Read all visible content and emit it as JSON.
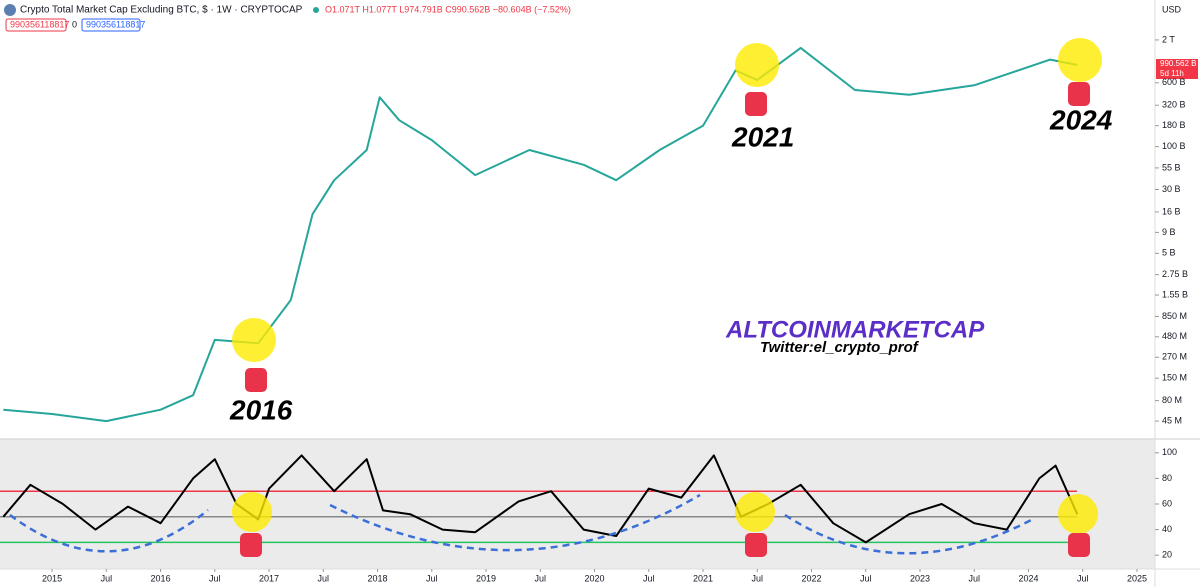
{
  "header": {
    "title": "Crypto Total Market Cap Excluding BTC, $ · 1W · CRYPTOCAP",
    "ohlc": "O1.071T H1.077T L974.791B C990.562B −80.604B (−7.52%)",
    "box_red": "990356118817",
    "zero": "0",
    "box_blue": "990356118817",
    "currency": "USD",
    "last_price": "990.562 B",
    "countdown": "5d 11h"
  },
  "annotations": {
    "y2016": "2016",
    "y2021": "2021",
    "y2024": "2024",
    "brand": "ALTCOINMARKETCAP",
    "twitter": "Twitter:el_crypto_prof"
  },
  "chart_data": [
    {
      "type": "line",
      "log_scale": true,
      "xlim": [
        2014.52,
        2025.12
      ],
      "ylim": [
        28000000,
        3500000000000
      ],
      "x": [
        2014.55,
        2015.0,
        2015.5,
        2016.0,
        2016.3,
        2016.5,
        2016.9,
        2017.2,
        2017.4,
        2017.6,
        2017.9,
        2018.02,
        2018.2,
        2018.5,
        2018.9,
        2019.4,
        2019.9,
        2020.2,
        2020.6,
        2021.0,
        2021.3,
        2021.5,
        2021.9,
        2022.4,
        2022.9,
        2023.5,
        2024.2,
        2024.45
      ],
      "series": [
        {
          "color": "#26a69a",
          "values": [
            62000000,
            55000000,
            45000000,
            62000000,
            93000000,
            440000000,
            400000000,
            1350000000,
            15000000000,
            39000000000,
            91000000000,
            400000000000,
            210000000000,
            120000000000,
            45000000000,
            91000000000,
            60000000000,
            39000000000,
            91000000000,
            180000000000,
            850000000000,
            650000000000,
            1600000000000,
            490000000000,
            430000000000,
            560000000000,
            1150000000000,
            990562000000
          ]
        }
      ],
      "yticks": [
        {
          "value": 2000000000000,
          "label": "2 T"
        },
        {
          "value": 600000000000,
          "label": "600 B"
        },
        {
          "value": 320000000000,
          "label": "320 B"
        },
        {
          "value": 180000000000,
          "label": "180 B"
        },
        {
          "value": 100000000000,
          "label": "100 B"
        },
        {
          "value": 55000000000,
          "label": "55 B"
        },
        {
          "value": 30000000000,
          "label": "30 B"
        },
        {
          "value": 16000000000,
          "label": "16 B"
        },
        {
          "value": 9000000000,
          "label": "9 B"
        },
        {
          "value": 5000000000,
          "label": "5 B"
        },
        {
          "value": 2750000000,
          "label": "2.75 B"
        },
        {
          "value": 1550000000,
          "label": "1.55 B"
        },
        {
          "value": 850000000,
          "label": "850 M"
        },
        {
          "value": 480000000,
          "label": "480 M"
        },
        {
          "value": 270000000,
          "label": "270 M"
        },
        {
          "value": 150000000,
          "label": "150 M"
        },
        {
          "value": 80000000,
          "label": "80 M"
        },
        {
          "value": 45000000,
          "label": "45 M"
        }
      ]
    },
    {
      "type": "line",
      "xlim": [
        2014.52,
        2025.12
      ],
      "ylim": [
        10,
        110
      ],
      "x": [
        2014.55,
        2014.8,
        2015.1,
        2015.4,
        2015.7,
        2016.0,
        2016.3,
        2016.5,
        2016.7,
        2016.9,
        2017.0,
        2017.3,
        2017.6,
        2017.9,
        2018.05,
        2018.3,
        2018.6,
        2018.9,
        2019.3,
        2019.6,
        2019.9,
        2020.2,
        2020.5,
        2020.8,
        2021.1,
        2021.35,
        2021.6,
        2021.9,
        2022.2,
        2022.5,
        2022.9,
        2023.2,
        2023.5,
        2023.8,
        2024.1,
        2024.25,
        2024.45
      ],
      "series": [
        {
          "color": "#000000",
          "values": [
            50,
            75,
            60,
            40,
            58,
            45,
            80,
            95,
            60,
            48,
            72,
            98,
            70,
            95,
            55,
            52,
            40,
            38,
            62,
            70,
            40,
            35,
            72,
            65,
            98,
            50,
            60,
            75,
            45,
            30,
            52,
            60,
            45,
            40,
            80,
            90,
            52
          ]
        }
      ],
      "hlines": [
        70,
        50,
        30
      ],
      "hline_colors": [
        "#f23645",
        "#888888",
        "#22c55e"
      ],
      "yticks": [
        20,
        40,
        60,
        80,
        100
      ],
      "xticks": [
        {
          "value": 2015,
          "label": "2015"
        },
        {
          "value": 2015.5,
          "label": "Jul"
        },
        {
          "value": 2016,
          "label": "2016"
        },
        {
          "value": 2016.5,
          "label": "Jul"
        },
        {
          "value": 2017,
          "label": "2017"
        },
        {
          "value": 2017.5,
          "label": "Jul"
        },
        {
          "value": 2018,
          "label": "2018"
        },
        {
          "value": 2018.5,
          "label": "Jul"
        },
        {
          "value": 2019,
          "label": "2019"
        },
        {
          "value": 2019.5,
          "label": "Jul"
        },
        {
          "value": 2020,
          "label": "2020"
        },
        {
          "value": 2020.5,
          "label": "Jul"
        },
        {
          "value": 2021,
          "label": "2021"
        },
        {
          "value": 2021.5,
          "label": "Jul"
        },
        {
          "value": 2022,
          "label": "2022"
        },
        {
          "value": 2022.5,
          "label": "Jul"
        },
        {
          "value": 2023,
          "label": "2023"
        },
        {
          "value": 2023.5,
          "label": "Jul"
        },
        {
          "value": 2024,
          "label": "2024"
        },
        {
          "value": 2024.5,
          "label": "Jul"
        },
        {
          "value": 2025,
          "label": "2025"
        }
      ]
    }
  ]
}
